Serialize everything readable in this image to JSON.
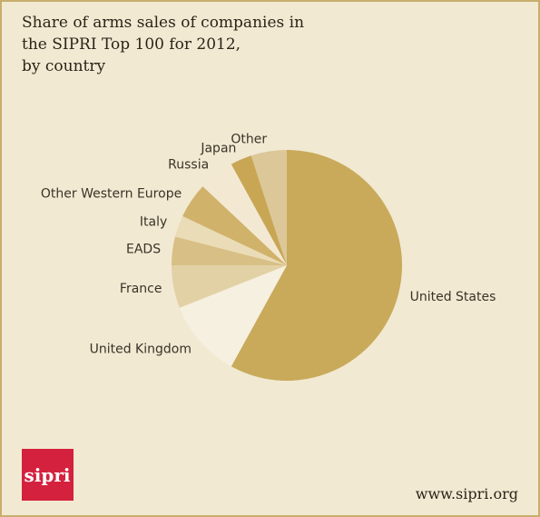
{
  "chart_data": {
    "type": "pie",
    "title": [
      "Share of arms sales of companies in",
      "the SIPRI Top 100 for 2012,",
      "by country"
    ],
    "categories": [
      "United States",
      "United Kingdom",
      "France",
      "EADS",
      "Italy",
      "Other Western Europe",
      "Russia",
      "Japan",
      "Other"
    ],
    "values": [
      58,
      11,
      6,
      4,
      3,
      5,
      5,
      3,
      5
    ],
    "colors": [
      "#c8aa5a",
      "#f6f0e0",
      "#e3d1a6",
      "#d8bf85",
      "#ebdcb8",
      "#d0b26a",
      "#f3e9d2",
      "#c8a654",
      "#dcc799"
    ],
    "logo": "sipri",
    "source": "www.sipri.org"
  }
}
